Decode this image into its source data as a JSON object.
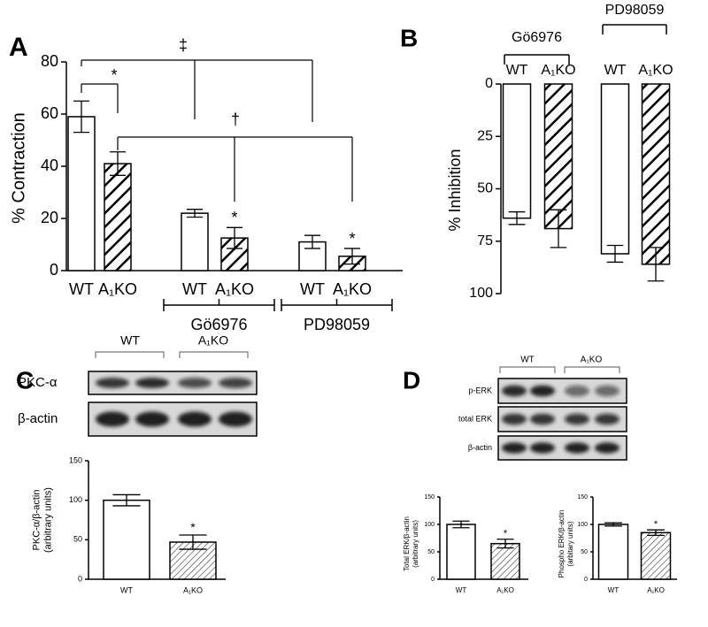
{
  "chart_data": [
    {
      "type": "bar",
      "panel": "A",
      "ylabel": "% Contraction",
      "categories": [
        "WT",
        "A₁KO",
        "WT",
        "A₁KO",
        "WT",
        "A₁KO"
      ],
      "values": [
        59,
        41,
        22,
        12.5,
        11,
        5.5
      ],
      "errors": [
        6,
        4.5,
        1.5,
        4,
        2.5,
        3
      ],
      "hatched": [
        false,
        true,
        false,
        true,
        false,
        true
      ],
      "ylim": [
        0,
        80
      ],
      "yticks": [
        0,
        20,
        40,
        60,
        80
      ],
      "groups": [
        {
          "label": "Gö6976",
          "categories": [
            2,
            3
          ]
        },
        {
          "label": "PD98059",
          "categories": [
            4,
            5
          ]
        }
      ],
      "annotations": [
        {
          "text": "*",
          "bracket": [
            0,
            1
          ]
        },
        {
          "text": "‡",
          "bracket": [
            0,
            2,
            4
          ]
        },
        {
          "text": "†",
          "bracket": [
            1,
            3,
            5
          ]
        },
        {
          "text": "*",
          "category": 3
        },
        {
          "text": "*",
          "category": 5
        }
      ]
    },
    {
      "type": "bar",
      "panel": "B",
      "ylabel": "% Inhibition",
      "y_inverted": true,
      "categories": [
        "WT",
        "A₁KO",
        "WT",
        "A₁KO"
      ],
      "values": [
        64,
        69,
        81,
        86
      ],
      "errors": [
        3,
        9,
        4,
        8
      ],
      "hatched": [
        false,
        true,
        false,
        true
      ],
      "ylim": [
        0,
        100
      ],
      "yticks": [
        0,
        25,
        50,
        75,
        100
      ],
      "groups": [
        {
          "label": "Gö6976",
          "categories": [
            0,
            1
          ]
        },
        {
          "label": "PD98059",
          "categories": [
            2,
            3
          ]
        }
      ]
    },
    {
      "type": "bar",
      "ylabel": [
        "PKC-α/β-actin",
        "(arbitrary units)"
      ],
      "categories": [
        "WT",
        "A₁KO"
      ],
      "values": [
        100,
        47
      ],
      "errors": [
        7,
        9
      ],
      "hatched": [
        false,
        true
      ],
      "ylim": [
        0,
        150
      ],
      "yticks": [
        0,
        50,
        100,
        150
      ],
      "annotations": [
        {
          "text": "*",
          "category": 1
        }
      ]
    },
    {
      "type": "bar",
      "ylabel": [
        "Total ERK/β-actin",
        "(arbitrary units)"
      ],
      "categories": [
        "WT",
        "A₁KO"
      ],
      "values": [
        100,
        65
      ],
      "errors": [
        6,
        8
      ],
      "hatched": [
        false,
        true
      ],
      "ylim": [
        0,
        150
      ],
      "yticks": [
        0,
        50,
        100,
        150
      ],
      "annotations": [
        {
          "text": "*",
          "category": 1
        }
      ]
    },
    {
      "type": "bar",
      "ylabel": [
        "Phospho ERK/β-actin",
        "(arbitary units)"
      ],
      "categories": [
        "WT",
        "A₁KO"
      ],
      "values": [
        100,
        85
      ],
      "errors": [
        3,
        5
      ],
      "hatched": [
        false,
        true
      ],
      "ylim": [
        0,
        150
      ],
      "yticks": [
        0,
        50,
        100,
        150
      ],
      "annotations": [
        {
          "text": "*",
          "category": 1
        }
      ]
    }
  ],
  "blots": [
    {
      "panel": "C",
      "groups": [
        "WT",
        "A₁KO"
      ],
      "rows": [
        "PKC-α",
        "β-actin"
      ]
    },
    {
      "panel": "D",
      "groups": [
        "WT",
        "A₁KO"
      ],
      "rows": [
        "p-ERK",
        "total ERK",
        "β-actin"
      ]
    }
  ]
}
